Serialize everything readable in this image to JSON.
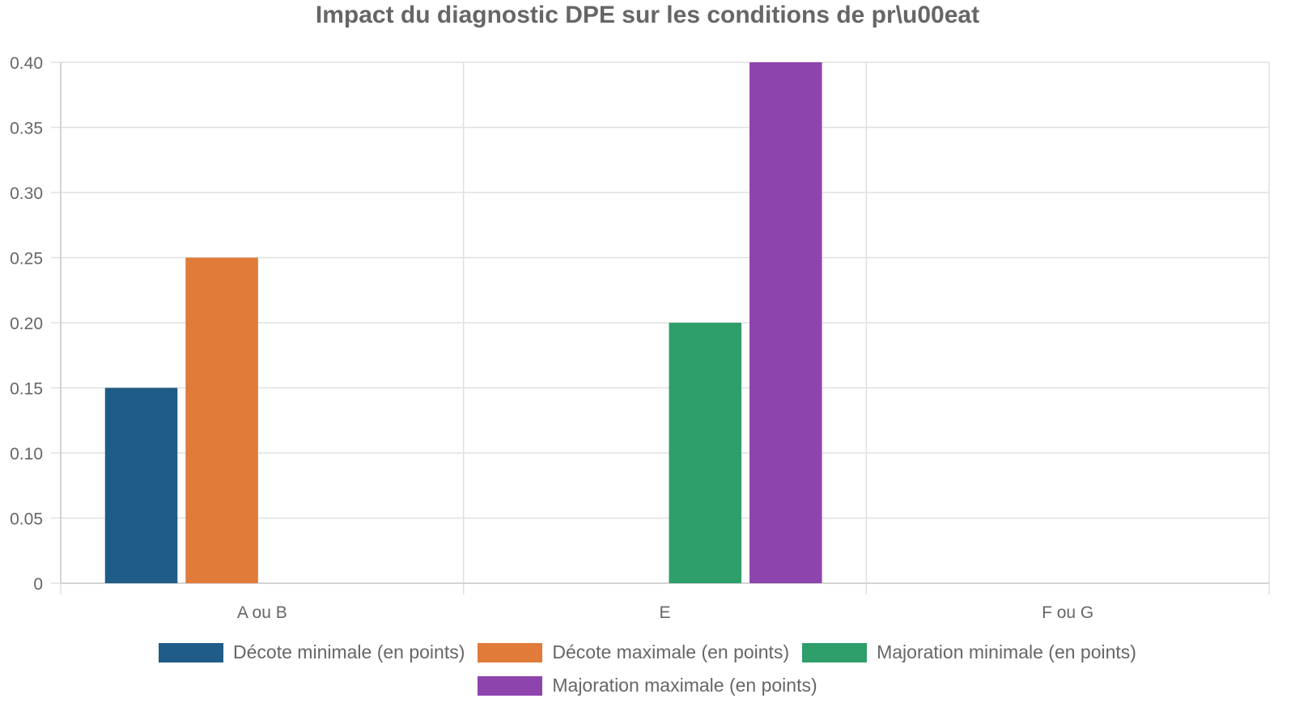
{
  "chart_data": {
    "type": "bar",
    "title": "Impact du diagnostic DPE sur les conditions de pr\\u00eat",
    "categories": [
      "A ou B",
      "E",
      "F ou G"
    ],
    "series": [
      {
        "name": "Décote minimale (en points)",
        "color": "#1f5c87",
        "values": [
          0.15,
          null,
          null
        ]
      },
      {
        "name": "Décote maximale (en points)",
        "color": "#e07b39",
        "values": [
          0.25,
          null,
          null
        ]
      },
      {
        "name": "Majoration minimale (en points)",
        "color": "#2e9e6b",
        "values": [
          null,
          0.2,
          null
        ]
      },
      {
        "name": "Majoration maximale (en points)",
        "color": "#8e44ad",
        "values": [
          null,
          0.4,
          null
        ]
      }
    ],
    "yticks": [
      "0",
      "0.05",
      "0.10",
      "0.15",
      "0.20",
      "0.25",
      "0.30",
      "0.35",
      "0.40"
    ],
    "ylim": [
      0,
      0.4
    ],
    "grid": true,
    "legend_position": "bottom"
  }
}
